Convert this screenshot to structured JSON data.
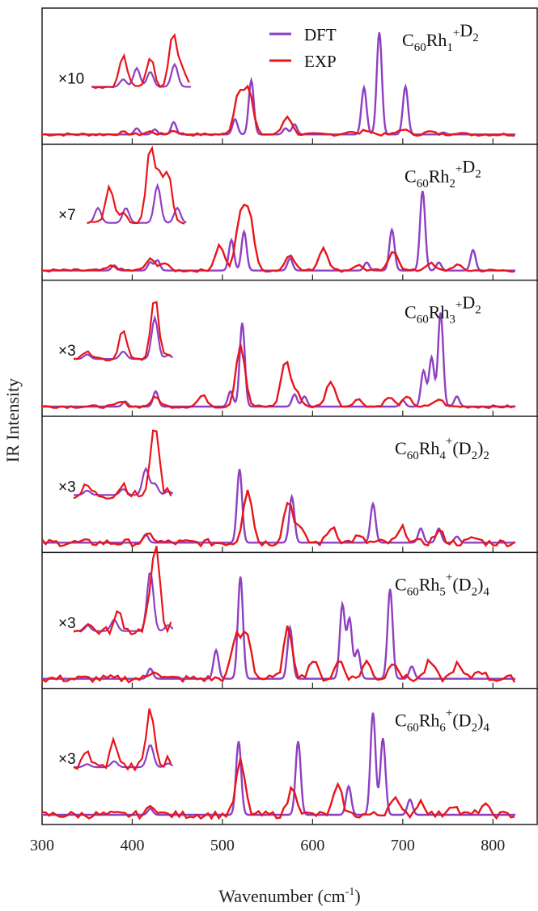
{
  "chart_data": {
    "type": "line",
    "xlabel": "Wavenumber (cm-1)",
    "xlabel_parts": {
      "main": "Wavenumber (cm",
      "sup": "-1",
      "close": ")"
    },
    "ylabel": "IR Intensity",
    "xlim": [
      300,
      850
    ],
    "xticks": [
      300,
      400,
      500,
      600,
      700,
      800
    ],
    "grid": false,
    "colors": {
      "DFT": "#8e3fc2",
      "EXP": "#e8151b"
    },
    "legend": {
      "position": "top-right (first panel)",
      "entries": [
        "DFT",
        "EXP"
      ]
    },
    "panels": [
      {
        "label": {
          "base": "C",
          "sub1": "60",
          "el": "Rh",
          "n": "1",
          "sup": "+",
          "tail": "D",
          "tailSub": "2",
          "paren": false
        },
        "multiplier": "×10",
        "inset_range": [
          355,
          465
        ],
        "dft_peaks": [
          [
            405,
            0.06
          ],
          [
            425,
            0.05
          ],
          [
            446,
            0.12
          ],
          [
            514,
            0.15
          ],
          [
            532,
            0.53
          ],
          [
            570,
            0.06
          ],
          [
            580,
            0.1
          ],
          [
            657,
            0.46
          ],
          [
            674,
            1.0
          ],
          [
            703,
            0.47
          ],
          [
            745,
            0.02
          ]
        ],
        "exp_peaks": [
          [
            390,
            0.02
          ],
          [
            420,
            0.03
          ],
          [
            446,
            0.04
          ],
          [
            518,
            0.44
          ],
          [
            529,
            0.48
          ],
          [
            572,
            0.2
          ],
          [
            640,
            0.03
          ],
          [
            660,
            0.05
          ],
          [
            700,
            0.06
          ],
          [
            730,
            0.03
          ],
          [
            760,
            0.02
          ]
        ],
        "dft_inset": [
          [
            390,
            0.1
          ],
          [
            405,
            0.25
          ],
          [
            420,
            0.2
          ],
          [
            447,
            0.3
          ]
        ],
        "exp_inset": [
          [
            390,
            0.42
          ],
          [
            420,
            0.4
          ],
          [
            445,
            0.72
          ],
          [
            455,
            0.25
          ]
        ]
      },
      {
        "label": {
          "base": "C",
          "sub1": "60",
          "el": "Rh",
          "n": "2",
          "sup": "+",
          "tail": "D",
          "tailSub": "2",
          "paren": false
        },
        "multiplier": "×7",
        "inset_range": [
          350,
          460
        ],
        "dft_peaks": [
          [
            380,
            0.05
          ],
          [
            420,
            0.08
          ],
          [
            428,
            0.1
          ],
          [
            510,
            0.3
          ],
          [
            524,
            0.38
          ],
          [
            575,
            0.12
          ],
          [
            660,
            0.08
          ],
          [
            688,
            0.4
          ],
          [
            722,
            0.78
          ],
          [
            740,
            0.08
          ],
          [
            778,
            0.2
          ]
        ],
        "exp_peaks": [
          [
            378,
            0.05
          ],
          [
            420,
            0.12
          ],
          [
            435,
            0.08
          ],
          [
            497,
            0.28
          ],
          [
            520,
            0.58
          ],
          [
            530,
            0.6
          ],
          [
            575,
            0.18
          ],
          [
            612,
            0.25
          ],
          [
            650,
            0.06
          ],
          [
            690,
            0.22
          ],
          [
            730,
            0.08
          ],
          [
            760,
            0.06
          ]
        ],
        "dft_inset": [
          [
            362,
            0.2
          ],
          [
            393,
            0.2
          ],
          [
            428,
            0.5
          ],
          [
            450,
            0.2
          ]
        ],
        "exp_inset": [
          [
            375,
            0.5
          ],
          [
            390,
            0.15
          ],
          [
            420,
            1.0
          ],
          [
            430,
            0.6
          ],
          [
            440,
            0.65
          ]
        ]
      },
      {
        "label": {
          "base": "C",
          "sub1": "60",
          "el": "Rh",
          "n": "3",
          "sup": "+",
          "tail": "D",
          "tailSub": "2",
          "paren": false
        },
        "multiplier": "×3",
        "inset_range": [
          335,
          445
        ],
        "dft_peaks": [
          [
            392,
            0.05
          ],
          [
            426,
            0.15
          ],
          [
            509,
            0.15
          ],
          [
            522,
            0.82
          ],
          [
            580,
            0.12
          ],
          [
            591,
            0.1
          ],
          [
            700,
            0.06
          ],
          [
            723,
            0.35
          ],
          [
            732,
            0.48
          ],
          [
            742,
            0.92
          ],
          [
            760,
            0.1
          ]
        ],
        "exp_peaks": [
          [
            388,
            0.05
          ],
          [
            426,
            0.1
          ],
          [
            478,
            0.12
          ],
          [
            520,
            0.68
          ],
          [
            570,
            0.5
          ],
          [
            582,
            0.15
          ],
          [
            620,
            0.28
          ],
          [
            650,
            0.08
          ],
          [
            685,
            0.1
          ],
          [
            705,
            0.1
          ],
          [
            740,
            0.08
          ]
        ],
        "dft_inset": [
          [
            350,
            0.06
          ],
          [
            390,
            0.1
          ],
          [
            425,
            0.55
          ],
          [
            440,
            0.05
          ]
        ],
        "exp_inset": [
          [
            350,
            0.12
          ],
          [
            390,
            0.4
          ],
          [
            425,
            0.85
          ],
          [
            440,
            0.05
          ]
        ]
      },
      {
        "label": {
          "base": "C",
          "sub1": "60",
          "el": "Rh",
          "n": "4",
          "sup": "+",
          "tail": "D",
          "tailSub": "2",
          "paren": true,
          "outerSub": "2"
        },
        "multiplier": "×3",
        "inset_range": [
          335,
          445
        ],
        "dft_peaks": [
          [
            415,
            0.08
          ],
          [
            519,
            0.72
          ],
          [
            577,
            0.45
          ],
          [
            667,
            0.38
          ],
          [
            720,
            0.14
          ],
          [
            740,
            0.14
          ],
          [
            760,
            0.06
          ]
        ],
        "exp_peaks": [
          [
            420,
            0.08
          ],
          [
            528,
            0.6
          ],
          [
            573,
            0.45
          ],
          [
            585,
            0.15
          ],
          [
            622,
            0.18
          ],
          [
            650,
            0.06
          ],
          [
            700,
            0.15
          ],
          [
            740,
            0.12
          ],
          [
            780,
            0.05
          ]
        ],
        "dft_inset": [
          [
            350,
            0.06
          ],
          [
            390,
            0.08
          ],
          [
            415,
            0.35
          ],
          [
            425,
            0.15
          ],
          [
            440,
            0.05
          ]
        ],
        "exp_inset": [
          [
            350,
            0.12
          ],
          [
            390,
            0.15
          ],
          [
            425,
            1.0
          ],
          [
            440,
            0.05
          ]
        ]
      },
      {
        "label": {
          "base": "C",
          "sub1": "60",
          "el": "Rh",
          "n": "5",
          "sup": "+",
          "tail": "D",
          "tailSub": "2",
          "paren": true,
          "outerSub": "4"
        },
        "multiplier": "×3",
        "inset_range": [
          335,
          445
        ],
        "dft_peaks": [
          [
            420,
            0.1
          ],
          [
            493,
            0.28
          ],
          [
            520,
            1.0
          ],
          [
            575,
            0.5
          ],
          [
            633,
            0.72
          ],
          [
            641,
            0.58
          ],
          [
            650,
            0.28
          ],
          [
            686,
            0.88
          ],
          [
            710,
            0.12
          ]
        ],
        "exp_peaks": [
          [
            425,
            0.1
          ],
          [
            515,
            0.45
          ],
          [
            527,
            0.5
          ],
          [
            573,
            0.55
          ],
          [
            600,
            0.2
          ],
          [
            630,
            0.2
          ],
          [
            660,
            0.18
          ],
          [
            690,
            0.2
          ],
          [
            730,
            0.18
          ],
          [
            760,
            0.15
          ],
          [
            785,
            0.1
          ]
        ],
        "dft_inset": [
          [
            350,
            0.08
          ],
          [
            380,
            0.15
          ],
          [
            420,
            0.8
          ],
          [
            440,
            0.08
          ]
        ],
        "exp_inset": [
          [
            350,
            0.1
          ],
          [
            385,
            0.25
          ],
          [
            420,
            0.35
          ],
          [
            427,
            1.0
          ],
          [
            445,
            0.08
          ]
        ]
      },
      {
        "label": {
          "base": "C",
          "sub1": "60",
          "el": "Rh",
          "n": "6",
          "sup": "+",
          "tail": "D",
          "tailSub": "2",
          "paren": true,
          "outerSub": "4"
        },
        "multiplier": "×3",
        "inset_range": [
          335,
          445
        ],
        "dft_peaks": [
          [
            420,
            0.06
          ],
          [
            518,
            0.72
          ],
          [
            584,
            0.72
          ],
          [
            640,
            0.28
          ],
          [
            667,
            1.0
          ],
          [
            678,
            0.75
          ],
          [
            708,
            0.15
          ]
        ],
        "exp_peaks": [
          [
            423,
            0.1
          ],
          [
            520,
            0.58
          ],
          [
            578,
            0.3
          ],
          [
            628,
            0.3
          ],
          [
            690,
            0.2
          ],
          [
            720,
            0.15
          ],
          [
            755,
            0.12
          ],
          [
            790,
            0.1
          ]
        ],
        "dft_inset": [
          [
            350,
            0.04
          ],
          [
            380,
            0.08
          ],
          [
            420,
            0.3
          ],
          [
            440,
            0.05
          ]
        ],
        "exp_inset": [
          [
            350,
            0.2
          ],
          [
            380,
            0.35
          ],
          [
            420,
            0.8
          ],
          [
            440,
            0.1
          ]
        ]
      }
    ]
  }
}
